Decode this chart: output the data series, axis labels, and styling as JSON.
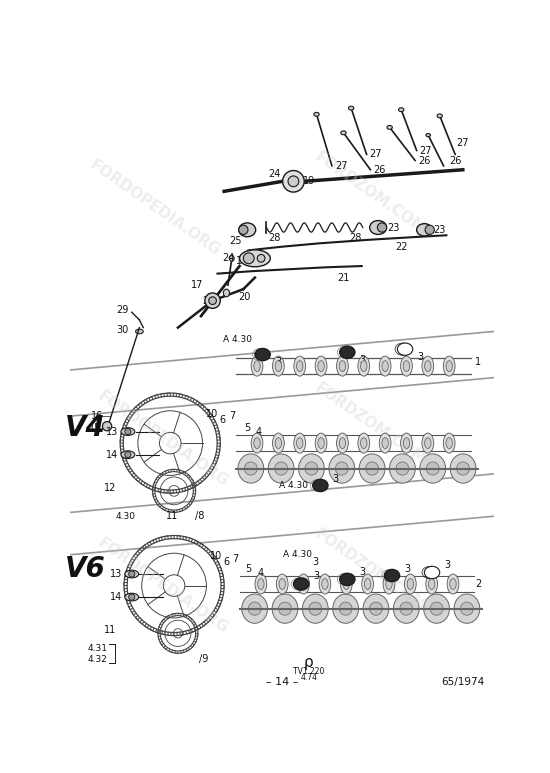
{
  "background_color": "#ffffff",
  "line_color": "#1a1a1a",
  "text_color": "#111111",
  "light_gray": "#888888",
  "mid_gray": "#555555",
  "dark_fill": "#2a2a2a",
  "watermark_color": "#cccccc",
  "watermark_alpha": 0.35,
  "page_number": "– 14 –",
  "ref_number": "65/1974",
  "drawing_ref_symbol": "ρ",
  "drawing_ref_line1": "TV1 220",
  "drawing_ref_line2": "4.74",
  "V4_label": "V4",
  "V6_label": "V6",
  "figsize": [
    5.5,
    7.73
  ],
  "dpi": 100
}
